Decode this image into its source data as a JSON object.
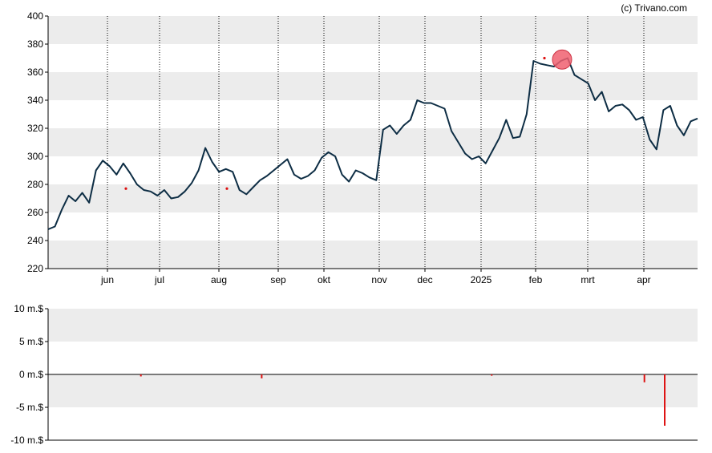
{
  "credit": "(c) Trivano.com",
  "colors": {
    "line": "#0d2d44",
    "band": "#ececec",
    "volume": "#dd1111",
    "marker": "#f06070",
    "marker_stroke": "#cc3344",
    "axis": "#000000"
  },
  "chart_data": [
    {
      "type": "line",
      "title": "",
      "ylim": [
        220,
        400
      ],
      "y_ticks": [
        220,
        240,
        260,
        280,
        300,
        320,
        340,
        360,
        380,
        400
      ],
      "grid": "horizontal bands, dotted vertical lines at month ticks",
      "x_ticks": [
        "jun",
        "jul",
        "aug",
        "sep",
        "okt",
        "nov",
        "dec",
        "2025",
        "feb",
        "mrt",
        "apr"
      ],
      "series": [
        {
          "values": [
            248,
            250,
            262,
            272,
            268,
            274,
            267,
            290,
            297,
            293,
            287,
            295,
            288,
            280,
            276,
            275,
            272,
            276,
            270,
            271,
            275,
            281,
            290,
            306,
            296,
            289,
            291,
            289,
            276,
            273,
            278,
            283,
            286,
            290,
            294,
            298,
            287,
            284,
            286,
            290,
            299,
            303,
            300,
            287,
            282,
            290,
            288,
            285,
            283,
            319,
            322,
            316,
            322,
            326,
            340,
            338,
            338,
            336,
            334,
            318,
            310,
            302,
            298,
            300,
            295,
            304,
            313,
            326,
            313,
            314,
            330,
            368,
            366,
            365,
            364,
            368,
            370,
            358,
            355,
            352,
            340,
            346,
            332,
            336,
            337,
            333,
            326,
            328,
            312,
            305,
            333,
            336,
            322,
            315,
            325,
            327
          ]
        }
      ],
      "highlight": {
        "value": 369
      }
    },
    {
      "type": "bar",
      "title": "",
      "ylim": [
        -10,
        10
      ],
      "y_ticks": [
        "10 m.$",
        "5 m.$",
        "0 m.$",
        "-5 m.$",
        "-10 m.$"
      ],
      "unit": "m.$",
      "series": [
        {
          "values": [
            {
              "day": 96,
              "value": -0.3
            },
            {
              "day": 221,
              "value": -0.6
            },
            {
              "day": 459,
              "value": -0.2
            },
            {
              "day": 617,
              "value": -1.2
            },
            {
              "day": 638,
              "value": -7.8
            }
          ]
        }
      ]
    }
  ]
}
